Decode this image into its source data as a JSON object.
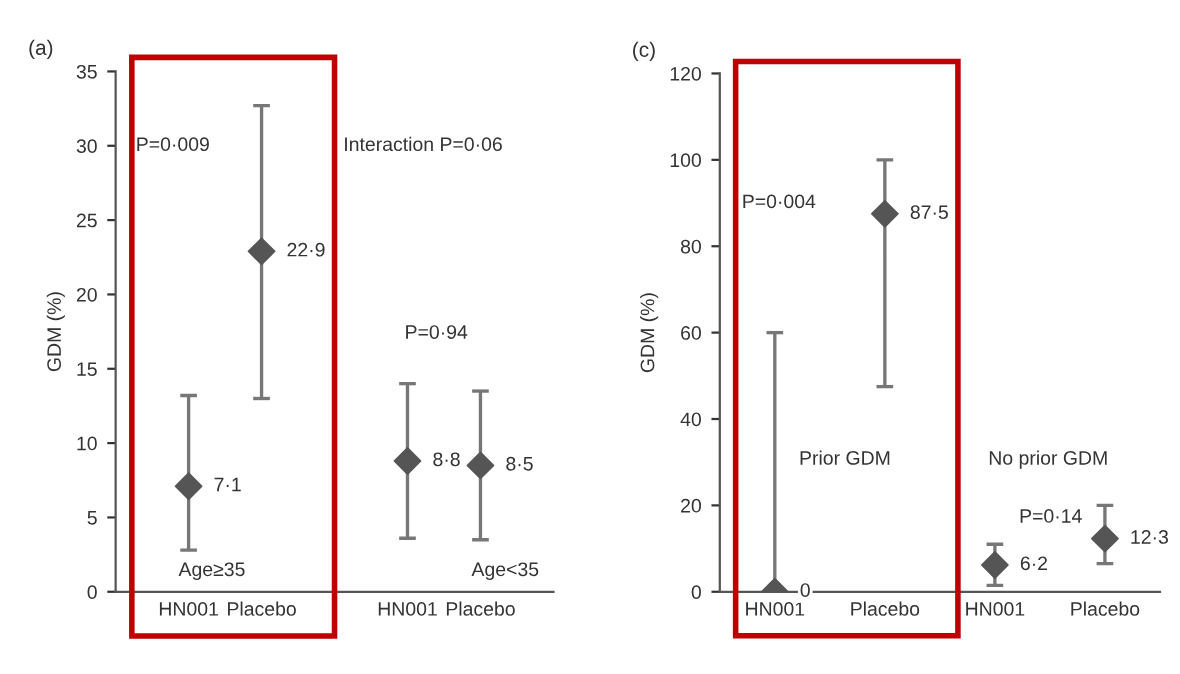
{
  "chart_data": [
    {
      "type": "scatter",
      "title": "(a)",
      "ylabel": "GDM (%)",
      "categories": [
        "HN001",
        "Placebo",
        null,
        "HN001",
        "Placebo"
      ],
      "series": [
        {
          "color": "#555555",
          "values": [
            7.1,
            22.9,
            null,
            8.8,
            8.5
          ],
          "errors": [
            [
              2.8,
              13.2
            ],
            [
              13,
              32.7
            ],
            null,
            [
              3.6,
              14
            ],
            [
              3.5,
              13.5
            ]
          ],
          "value_labels": [
            "7·1",
            "22·9",
            null,
            "8·8",
            "8·5"
          ]
        }
      ],
      "ylim": [
        0,
        35
      ],
      "yticks": [
        0,
        5,
        10,
        15,
        20,
        25,
        30,
        35
      ],
      "marker": "diamond",
      "grid": false,
      "legend": false,
      "annotations": [
        "P=0·009",
        "Interaction P=0·06",
        "P=0·94",
        "Age≥35",
        "Age<35"
      ]
    },
    {
      "type": "scatter",
      "title": "(c)",
      "ylabel": "GDM (%)",
      "categories": [
        "HN001",
        "Placebo",
        "HN001",
        "Placebo"
      ],
      "series": [
        {
          "color": "#555555",
          "values": [
            0,
            87.5,
            6.2,
            12.3
          ],
          "errors": [
            [
              0,
              60
            ],
            [
              47.5,
              100
            ],
            [
              1.5,
              11
            ],
            [
              6.5,
              20
            ]
          ],
          "value_labels": [
            "0",
            "87·5",
            "6·2",
            "12·3"
          ]
        }
      ],
      "ylim": [
        0,
        120
      ],
      "yticks": [
        0,
        20,
        40,
        60,
        80,
        100,
        120
      ],
      "marker": "diamond",
      "grid": false,
      "legend": false,
      "annotations": [
        "P=0·004",
        "Prior GDM",
        "No prior GDM",
        "P=0·14"
      ]
    }
  ]
}
